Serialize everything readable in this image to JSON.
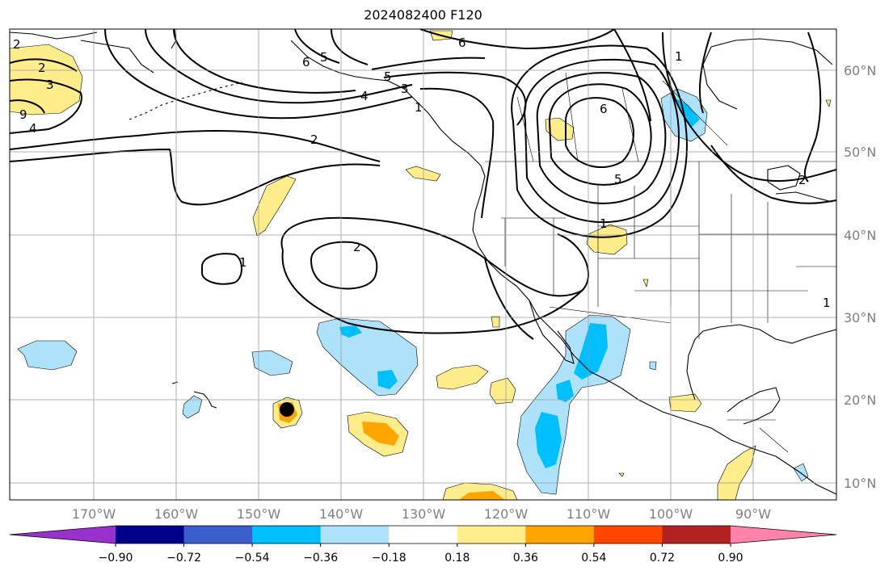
{
  "title": "2024082400 F120",
  "axes": {
    "lon_ticks": [
      "170°W",
      "160°W",
      "150°W",
      "140°W",
      "130°W",
      "120°W",
      "110°W",
      "100°W",
      "90°W"
    ],
    "lat_ticks": [
      "60°N",
      "50°N",
      "40°N",
      "30°N",
      "20°N",
      "10°N"
    ]
  },
  "colorbar": {
    "tick_labels": [
      "−0.90",
      "−0.72",
      "−0.54",
      "−0.36",
      "−0.18",
      "0.18",
      "0.36",
      "0.54",
      "0.72",
      "0.90"
    ],
    "colors": [
      "#9932cc",
      "#00008b",
      "#3a5fcd",
      "#00bfff",
      "#aee2fb",
      "#ffffff",
      "#ffec8b",
      "#ffa500",
      "#ff4500",
      "#b22222",
      "#ff82ab"
    ]
  },
  "contour_labels": [
    "2",
    "3",
    "4",
    "9",
    "6",
    "5",
    "6",
    "4",
    "5",
    "3",
    "1",
    "2",
    "6",
    "5",
    "1",
    "1",
    "2",
    "1",
    "2",
    "1",
    "2"
  ],
  "legend_colors": {
    "line": "#000000",
    "grid": "#999999",
    "marker": "#000000"
  }
}
